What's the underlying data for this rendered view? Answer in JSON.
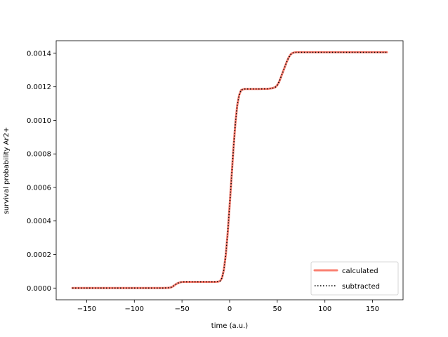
{
  "chart_data": {
    "type": "line",
    "title": "",
    "xlabel": "time (a.u.)",
    "ylabel": "survival probability Ar2+",
    "xlim": [
      -182,
      182
    ],
    "ylim": [
      -7e-05,
      0.001475
    ],
    "xticks": [
      -150,
      -100,
      -50,
      0,
      50,
      100,
      150
    ],
    "xtick_labels": [
      "−150",
      "−100",
      "−50",
      "0",
      "50",
      "100",
      "150"
    ],
    "yticks": [
      0,
      0.0002,
      0.0004,
      0.0006,
      0.0008,
      0.001,
      0.0012,
      0.0014
    ],
    "ytick_labels": [
      "0.0000",
      "0.0002",
      "0.0004",
      "0.0006",
      "0.0008",
      "0.0010",
      "0.0012",
      "0.0014"
    ],
    "grid": false,
    "legend": "lower right",
    "x": [
      -165,
      -150,
      -100,
      -70,
      -65,
      -62,
      -60,
      -58,
      -56,
      -54,
      -52,
      -50,
      -45,
      -40,
      -30,
      -20,
      -15,
      -12,
      -10,
      -8,
      -6,
      -4,
      -2,
      0,
      2,
      4,
      6,
      8,
      10,
      12,
      14,
      16,
      20,
      30,
      40,
      45,
      48,
      50,
      52,
      54,
      56,
      58,
      60,
      62,
      64,
      66,
      68,
      70,
      80,
      100,
      130,
      165
    ],
    "series": [
      {
        "name": "calculated",
        "color": "#fa8072",
        "style": "solid",
        "values": [
          0,
          0,
          0,
          0,
          1e-06,
          3e-06,
          8e-06,
          1.6e-05,
          2.4e-05,
          3e-05,
          3.4e-05,
          3.6e-05,
          3.7e-05,
          3.7e-05,
          3.7e-05,
          3.7e-05,
          3.7e-05,
          3.8e-05,
          4.2e-05,
          6e-05,
          0.00011,
          0.0002,
          0.00033,
          0.00049,
          0.00066,
          0.00083,
          0.00098,
          0.00109,
          0.00115,
          0.00118,
          0.001185,
          0.001187,
          0.001187,
          0.001187,
          0.001188,
          0.001192,
          0.001198,
          0.00121,
          0.00123,
          0.00126,
          0.00129,
          0.00132,
          0.00135,
          0.001375,
          0.001393,
          0.001402,
          0.001405,
          0.001406,
          0.001406,
          0.001406,
          0.001406,
          0.001406
        ]
      },
      {
        "name": "subtracted",
        "color": "#000000",
        "style": "dotted",
        "values": [
          0,
          0,
          0,
          0,
          1e-06,
          3e-06,
          8e-06,
          1.6e-05,
          2.4e-05,
          3e-05,
          3.4e-05,
          3.6e-05,
          3.7e-05,
          3.7e-05,
          3.7e-05,
          3.7e-05,
          3.7e-05,
          3.8e-05,
          4.2e-05,
          6e-05,
          0.00011,
          0.0002,
          0.00033,
          0.00049,
          0.00066,
          0.00083,
          0.00098,
          0.00109,
          0.00115,
          0.00118,
          0.001185,
          0.001187,
          0.001187,
          0.001187,
          0.001188,
          0.001192,
          0.001198,
          0.00121,
          0.00123,
          0.00126,
          0.00129,
          0.00132,
          0.00135,
          0.001375,
          0.001393,
          0.001402,
          0.001405,
          0.001406,
          0.001406,
          0.001406,
          0.001406,
          0.001406
        ]
      }
    ]
  }
}
